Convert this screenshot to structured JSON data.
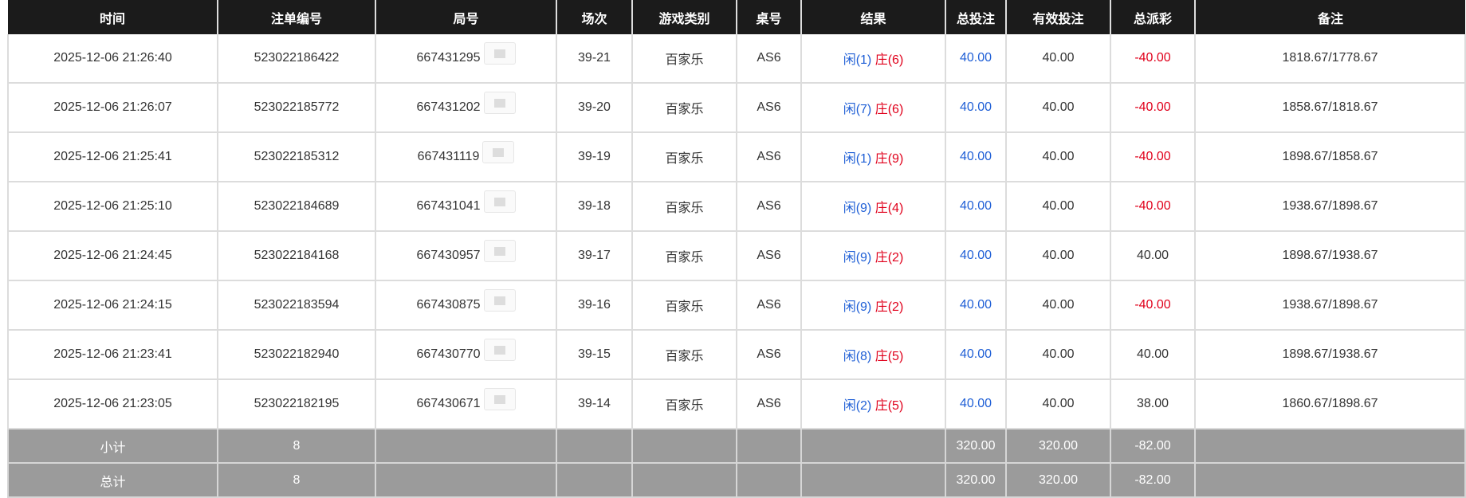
{
  "headers": [
    "时间",
    "注单编号",
    "局号",
    "场次",
    "游戏类别",
    "桌号",
    "结果",
    "总投注",
    "有效投注",
    "总派彩",
    "备注"
  ],
  "rows": [
    {
      "time": "2025-12-06 21:26:40",
      "bet_id": "523022186422",
      "round": "667431295",
      "session": "39-21",
      "game": "百家乐",
      "table": "AS6",
      "p": "闲(1)",
      "b": "庄(6)",
      "total": "40.00",
      "valid": "40.00",
      "payout": "-40.00",
      "neg": true,
      "note": "1818.67/1778.67"
    },
    {
      "time": "2025-12-06 21:26:07",
      "bet_id": "523022185772",
      "round": "667431202",
      "session": "39-20",
      "game": "百家乐",
      "table": "AS6",
      "p": "闲(7)",
      "b": "庄(6)",
      "total": "40.00",
      "valid": "40.00",
      "payout": "-40.00",
      "neg": true,
      "note": "1858.67/1818.67"
    },
    {
      "time": "2025-12-06 21:25:41",
      "bet_id": "523022185312",
      "round": "667431119",
      "session": "39-19",
      "game": "百家乐",
      "table": "AS6",
      "p": "闲(1)",
      "b": "庄(9)",
      "total": "40.00",
      "valid": "40.00",
      "payout": "-40.00",
      "neg": true,
      "note": "1898.67/1858.67"
    },
    {
      "time": "2025-12-06 21:25:10",
      "bet_id": "523022184689",
      "round": "667431041",
      "session": "39-18",
      "game": "百家乐",
      "table": "AS6",
      "p": "闲(9)",
      "b": "庄(4)",
      "total": "40.00",
      "valid": "40.00",
      "payout": "-40.00",
      "neg": true,
      "note": "1938.67/1898.67"
    },
    {
      "time": "2025-12-06 21:24:45",
      "bet_id": "523022184168",
      "round": "667430957",
      "session": "39-17",
      "game": "百家乐",
      "table": "AS6",
      "p": "闲(9)",
      "b": "庄(2)",
      "total": "40.00",
      "valid": "40.00",
      "payout": "40.00",
      "neg": false,
      "note": "1898.67/1938.67"
    },
    {
      "time": "2025-12-06 21:24:15",
      "bet_id": "523022183594",
      "round": "667430875",
      "session": "39-16",
      "game": "百家乐",
      "table": "AS6",
      "p": "闲(9)",
      "b": "庄(2)",
      "total": "40.00",
      "valid": "40.00",
      "payout": "-40.00",
      "neg": true,
      "note": "1938.67/1898.67"
    },
    {
      "time": "2025-12-06 21:23:41",
      "bet_id": "523022182940",
      "round": "667430770",
      "session": "39-15",
      "game": "百家乐",
      "table": "AS6",
      "p": "闲(8)",
      "b": "庄(5)",
      "total": "40.00",
      "valid": "40.00",
      "payout": "40.00",
      "neg": false,
      "note": "1898.67/1938.67"
    },
    {
      "time": "2025-12-06 21:23:05",
      "bet_id": "523022182195",
      "round": "667430671",
      "session": "39-14",
      "game": "百家乐",
      "table": "AS6",
      "p": "闲(2)",
      "b": "庄(5)",
      "total": "40.00",
      "valid": "40.00",
      "payout": "38.00",
      "neg": false,
      "note": "1860.67/1898.67"
    }
  ],
  "summary": [
    {
      "label": "小计",
      "count": "8",
      "total": "320.00",
      "valid": "320.00",
      "payout": "-82.00"
    },
    {
      "label": "总计",
      "count": "8",
      "total": "320.00",
      "valid": "320.00",
      "payout": "-82.00"
    }
  ],
  "colors": {
    "header_bg": "#1b1b1b",
    "player": "#1f5fd6",
    "banker": "#e0001b",
    "summary_bg": "#9b9b9b"
  },
  "icons": {
    "round_thumbnail": "image-placeholder-icon"
  }
}
